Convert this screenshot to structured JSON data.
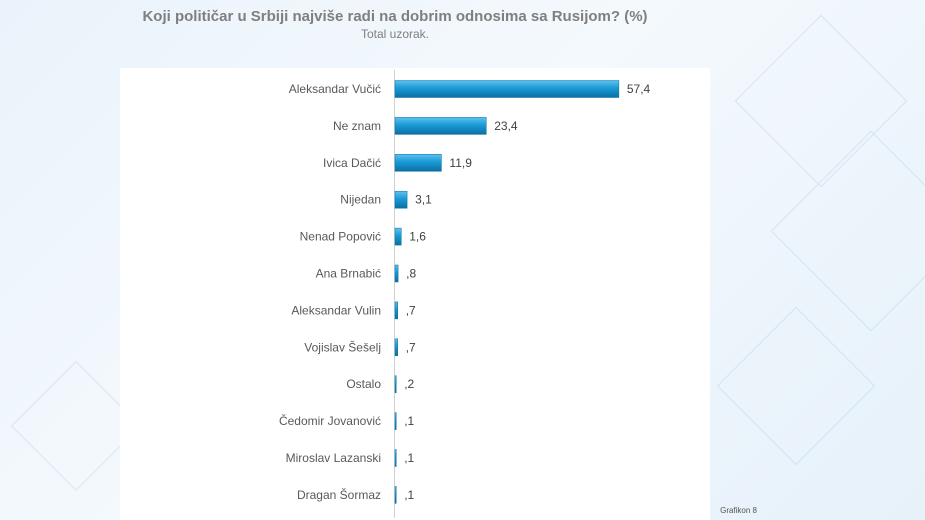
{
  "chart_data": {
    "type": "bar",
    "orientation": "horizontal",
    "title": "Koji političar u Srbiji najviše radi na dobrim odnosima sa Rusijom? (%)",
    "subtitle": "Total uzorak.",
    "categories": [
      "Aleksandar Vučić",
      "Ne znam",
      "Ivica Dačić",
      "Nijedan",
      "Nenad Popović",
      "Ana Brnabić",
      "Aleksandar Vulin",
      "Vojislav Šešelj",
      "Ostalo",
      "Čedomir Jovanović",
      "Miroslav Lazanski",
      "Dragan Šormaz"
    ],
    "values": [
      57.4,
      23.4,
      11.9,
      3.1,
      1.6,
      0.8,
      0.7,
      0.7,
      0.2,
      0.1,
      0.1,
      0.1
    ],
    "value_labels": [
      "57,4",
      "23,4",
      "11,9",
      "3,1",
      "1,6",
      ",8",
      ",7",
      ",7",
      ",2",
      ",1",
      ",1",
      ",1"
    ],
    "xlim": [
      0,
      80
    ],
    "grid": false,
    "legend": "none",
    "bar_color": "#1a9ad6"
  },
  "footer": "Grafikon 8"
}
